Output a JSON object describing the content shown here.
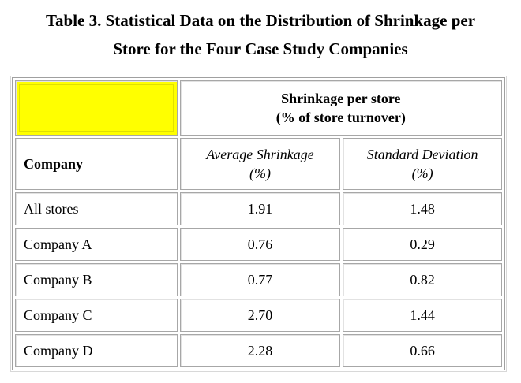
{
  "caption": {
    "line1": "Table 3. Statistical Data on the Distribution of Shrinkage per",
    "line2": "Store for the Four Case Study Companies"
  },
  "header": {
    "group_line1": "Shrinkage per store",
    "group_line2": "(% of store turnover)",
    "company": "Company",
    "avg_line1": "Average Shrinkage",
    "avg_line2": "(%)",
    "sd_line1": "Standard Deviation",
    "sd_line2": "(%)"
  },
  "rows": [
    {
      "company": "All stores",
      "average": "1.91",
      "sd": "1.48"
    },
    {
      "company": "Company A",
      "average": "0.76",
      "sd": "0.29"
    },
    {
      "company": "Company B",
      "average": "0.77",
      "sd": "0.82"
    },
    {
      "company": "Company C",
      "average": "2.70",
      "sd": "1.44"
    },
    {
      "company": "Company D",
      "average": "2.28",
      "sd": "0.66"
    }
  ],
  "colors": {
    "highlight": "#ffff00"
  }
}
